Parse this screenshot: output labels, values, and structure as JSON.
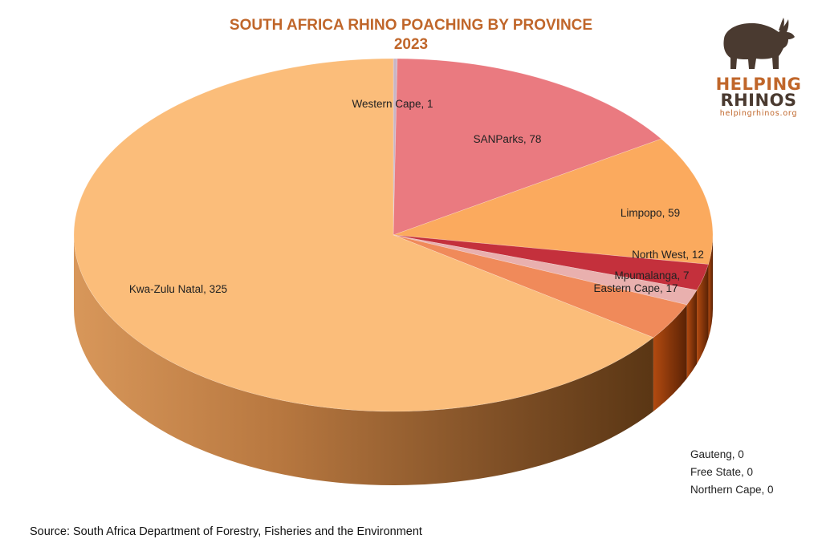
{
  "title_line1": "SOUTH AFRICA RHINO POACHING BY PROVINCE",
  "title_line2": "2023",
  "logo": {
    "word1": "HELPING",
    "word2": "RHINOS",
    "url": "helpingrhinos.org",
    "icon": "rhino-silhouette-icon"
  },
  "source": "Source: South Africa Department of Forestry, Fisheries and the Environment",
  "chart_data": {
    "type": "pie",
    "style": "3d",
    "title": "SOUTH AFRICA RHINO POACHING BY PROVINCE 2023",
    "slices": [
      {
        "name": "Western Cape",
        "value": 1,
        "label": "Western Cape, 1",
        "color": "#c9b6c6"
      },
      {
        "name": "SANParks",
        "value": 78,
        "label": "SANParks, 78",
        "color": "#ea7a80"
      },
      {
        "name": "Limpopo",
        "value": 59,
        "label": "Limpopo, 59",
        "color": "#fbaa5e"
      },
      {
        "name": "North West",
        "value": 12,
        "label": "North West, 12",
        "color": "#c4303c"
      },
      {
        "name": "Mpumalanga",
        "value": 7,
        "label": "Mpumalanga, 7",
        "color": "#e9b0ae"
      },
      {
        "name": "Eastern Cape",
        "value": 17,
        "label": "Eastern Cape, 17",
        "color": "#f08a5a"
      },
      {
        "name": "Kwa-Zulu Natal",
        "value": 325,
        "label": "Kwa-Zulu Natal, 325",
        "color": "#fbbd7a"
      },
      {
        "name": "Gauteng",
        "value": 0,
        "label": "Gauteng, 0"
      },
      {
        "name": "Free State",
        "value": 0,
        "label": "Free State, 0"
      },
      {
        "name": "Northern Cape",
        "value": 0,
        "label": "Northern Cape, 0"
      }
    ]
  }
}
